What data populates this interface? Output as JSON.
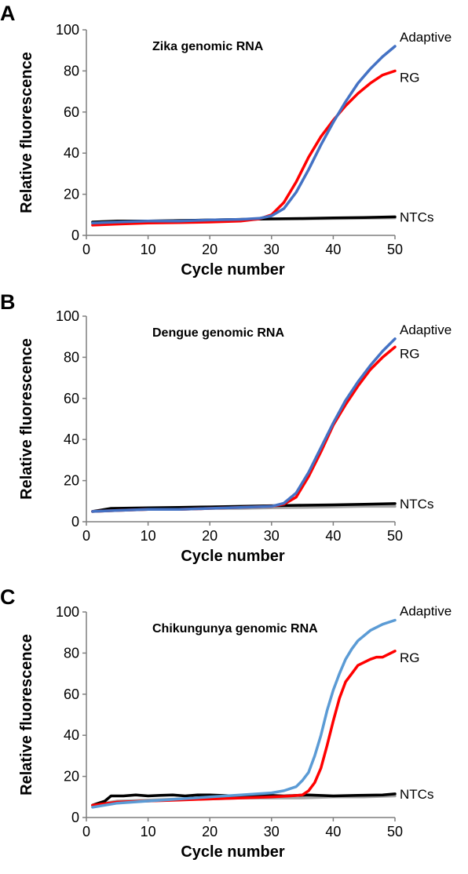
{
  "chart_data": [
    {
      "panel": "A",
      "type": "line",
      "title": "Zika genomic RNA",
      "xlabel": "Cycle number",
      "ylabel": "Relative fluorescence",
      "xlim": [
        0,
        50
      ],
      "ylim": [
        0,
        100
      ],
      "xticks": [
        0,
        10,
        20,
        30,
        40,
        50
      ],
      "yticks": [
        0,
        20,
        40,
        60,
        80,
        100
      ],
      "grid": false,
      "legend": "direct labels at right end of curves",
      "series": [
        {
          "name": "Adaptive",
          "color": "#4472c4",
          "x": [
            1,
            5,
            10,
            15,
            20,
            25,
            28,
            30,
            32,
            34,
            36,
            38,
            40,
            42,
            44,
            46,
            48,
            50
          ],
          "y": [
            6,
            6.5,
            7,
            7,
            7.5,
            7.8,
            8.3,
            9.5,
            13,
            21,
            32,
            44,
            55,
            65,
            74,
            81,
            87,
            92
          ]
        },
        {
          "name": "RG",
          "color": "#ff0000",
          "x": [
            1,
            5,
            10,
            15,
            20,
            25,
            28,
            30,
            32,
            34,
            36,
            38,
            40,
            42,
            44,
            46,
            48,
            50
          ],
          "y": [
            5,
            5.5,
            6,
            6.2,
            6.5,
            7,
            8,
            10,
            16,
            26,
            38,
            48,
            56,
            63,
            69,
            74,
            78,
            80
          ]
        },
        {
          "name": "NTCs",
          "color": "#000000",
          "x": [
            1,
            5,
            10,
            15,
            20,
            25,
            30,
            35,
            40,
            45,
            50
          ],
          "y": [
            6.5,
            7,
            7,
            7.2,
            7.5,
            7.8,
            8,
            8.2,
            8.5,
            8.7,
            9
          ]
        },
        {
          "name": "",
          "color": "#a6a6a6",
          "x": [
            1,
            5,
            10,
            15,
            20,
            25,
            30,
            35,
            40,
            45,
            50
          ],
          "y": [
            6,
            6.5,
            7,
            7.2,
            7.5,
            7.8,
            8,
            8,
            8.2,
            8.3,
            8.5
          ]
        }
      ]
    },
    {
      "panel": "B",
      "type": "line",
      "title": "Dengue genomic RNA",
      "xlabel": "Cycle number",
      "ylabel": "Relative fluorescence",
      "xlim": [
        0,
        50
      ],
      "ylim": [
        0,
        100
      ],
      "xticks": [
        0,
        10,
        20,
        30,
        40,
        50
      ],
      "yticks": [
        0,
        20,
        40,
        60,
        80,
        100
      ],
      "grid": false,
      "legend": "direct labels at right end of curves",
      "series": [
        {
          "name": "Adaptive",
          "color": "#4472c4",
          "x": [
            1,
            5,
            10,
            15,
            20,
            25,
            30,
            32,
            34,
            36,
            38,
            40,
            42,
            44,
            46,
            48,
            50
          ],
          "y": [
            5,
            5.5,
            6,
            6,
            6.5,
            7,
            7.5,
            9,
            14,
            24,
            36,
            48,
            59,
            68,
            76,
            83,
            89
          ]
        },
        {
          "name": "RG",
          "color": "#ff0000",
          "x": [
            1,
            5,
            10,
            15,
            20,
            25,
            30,
            32,
            34,
            36,
            38,
            40,
            42,
            44,
            46,
            48,
            50
          ],
          "y": [
            5,
            5.5,
            6,
            6,
            6.5,
            7,
            7.5,
            8.5,
            12,
            22,
            34,
            47,
            57,
            66,
            74,
            80,
            85
          ]
        },
        {
          "name": "NTCs",
          "color": "#000000",
          "x": [
            1,
            4,
            10,
            15,
            20,
            25,
            30,
            35,
            40,
            45,
            50
          ],
          "y": [
            5,
            6.5,
            6.8,
            7,
            7.2,
            7.5,
            7.8,
            8,
            8.2,
            8.5,
            8.8
          ]
        },
        {
          "name": "",
          "color": "#a6a6a6",
          "x": [
            1,
            5,
            10,
            15,
            20,
            25,
            30,
            35,
            40,
            45,
            50
          ],
          "y": [
            5,
            5.5,
            6,
            6,
            6.5,
            6.5,
            6.8,
            7,
            7.2,
            7.5,
            7.5
          ]
        }
      ]
    },
    {
      "panel": "C",
      "type": "line",
      "title": "Chikungunya genomic RNA",
      "xlabel": "Cycle number",
      "ylabel": "Relative fluorescence",
      "xlim": [
        0,
        50
      ],
      "ylim": [
        0,
        100
      ],
      "xticks": [
        0,
        10,
        20,
        30,
        40,
        50
      ],
      "yticks": [
        0,
        20,
        40,
        60,
        80,
        100
      ],
      "grid": false,
      "legend": "direct labels at right end of curves",
      "series": [
        {
          "name": "Adaptive",
          "color": "#5b9bd5",
          "x": [
            1,
            5,
            10,
            15,
            20,
            25,
            30,
            32,
            34,
            35,
            36,
            37,
            38,
            39,
            40,
            41,
            42,
            43,
            44,
            46,
            48,
            50
          ],
          "y": [
            5,
            7,
            8,
            9,
            10,
            11,
            12,
            13,
            15,
            18,
            22,
            30,
            40,
            52,
            62,
            70,
            77,
            82,
            86,
            91,
            94,
            96
          ]
        },
        {
          "name": "RG",
          "color": "#ff0000",
          "x": [
            1,
            5,
            10,
            15,
            20,
            25,
            30,
            33,
            35,
            36,
            37,
            38,
            39,
            40,
            41,
            42,
            43,
            44,
            46,
            47,
            48,
            50
          ],
          "y": [
            6,
            7.5,
            8,
            8.5,
            9,
            9.5,
            10,
            10.5,
            11,
            13,
            17,
            24,
            35,
            47,
            58,
            66,
            70,
            74,
            77,
            78,
            78,
            81
          ]
        },
        {
          "name": "NTCs",
          "color": "#000000",
          "x": [
            1,
            3,
            4,
            6,
            8,
            10,
            12,
            14,
            16,
            18,
            20,
            24,
            28,
            32,
            36,
            40,
            44,
            48,
            50
          ],
          "y": [
            6,
            8,
            10.5,
            10.5,
            11,
            10.5,
            10.8,
            11,
            10.5,
            11,
            11,
            10.5,
            11,
            10.5,
            11,
            10.5,
            10.8,
            11,
            11.5
          ]
        },
        {
          "name": "",
          "color": "#a6a6a6",
          "x": [
            1,
            5,
            10,
            15,
            20,
            25,
            30,
            35,
            40,
            45,
            50
          ],
          "y": [
            6,
            8,
            8.5,
            9,
            9,
            9.5,
            9.5,
            9.5,
            10,
            10,
            10.5
          ]
        }
      ]
    }
  ]
}
